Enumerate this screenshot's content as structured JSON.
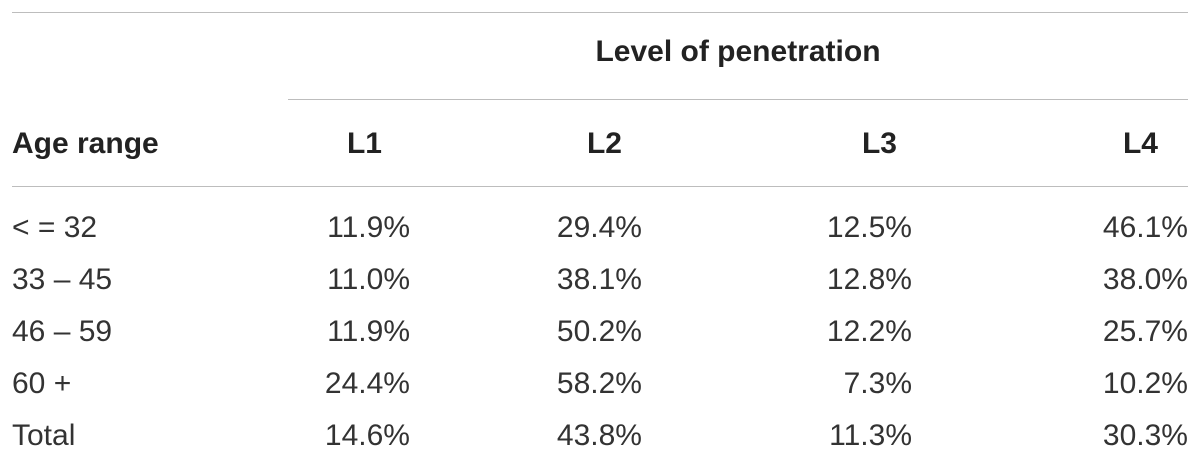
{
  "table": {
    "group_header": "Level of penetration",
    "row_header": "Age range",
    "columns": [
      "L1",
      "L2",
      "L3",
      "L4"
    ],
    "rows": [
      {
        "label": "< = 32",
        "values": [
          "11.9%",
          "29.4%",
          "12.5%",
          "46.1%"
        ]
      },
      {
        "label": "33 – 45",
        "values": [
          "11.0%",
          "38.1%",
          "12.8%",
          "38.0%"
        ]
      },
      {
        "label": "46 – 59",
        "values": [
          "11.9%",
          "50.2%",
          "12.2%",
          "25.7%"
        ]
      },
      {
        "label": "60 +",
        "values": [
          "24.4%",
          "58.2%",
          "7.3%",
          "10.2%"
        ]
      },
      {
        "label": "Total",
        "values": [
          "14.6%",
          "43.8%",
          "11.3%",
          "30.3%"
        ]
      }
    ]
  }
}
